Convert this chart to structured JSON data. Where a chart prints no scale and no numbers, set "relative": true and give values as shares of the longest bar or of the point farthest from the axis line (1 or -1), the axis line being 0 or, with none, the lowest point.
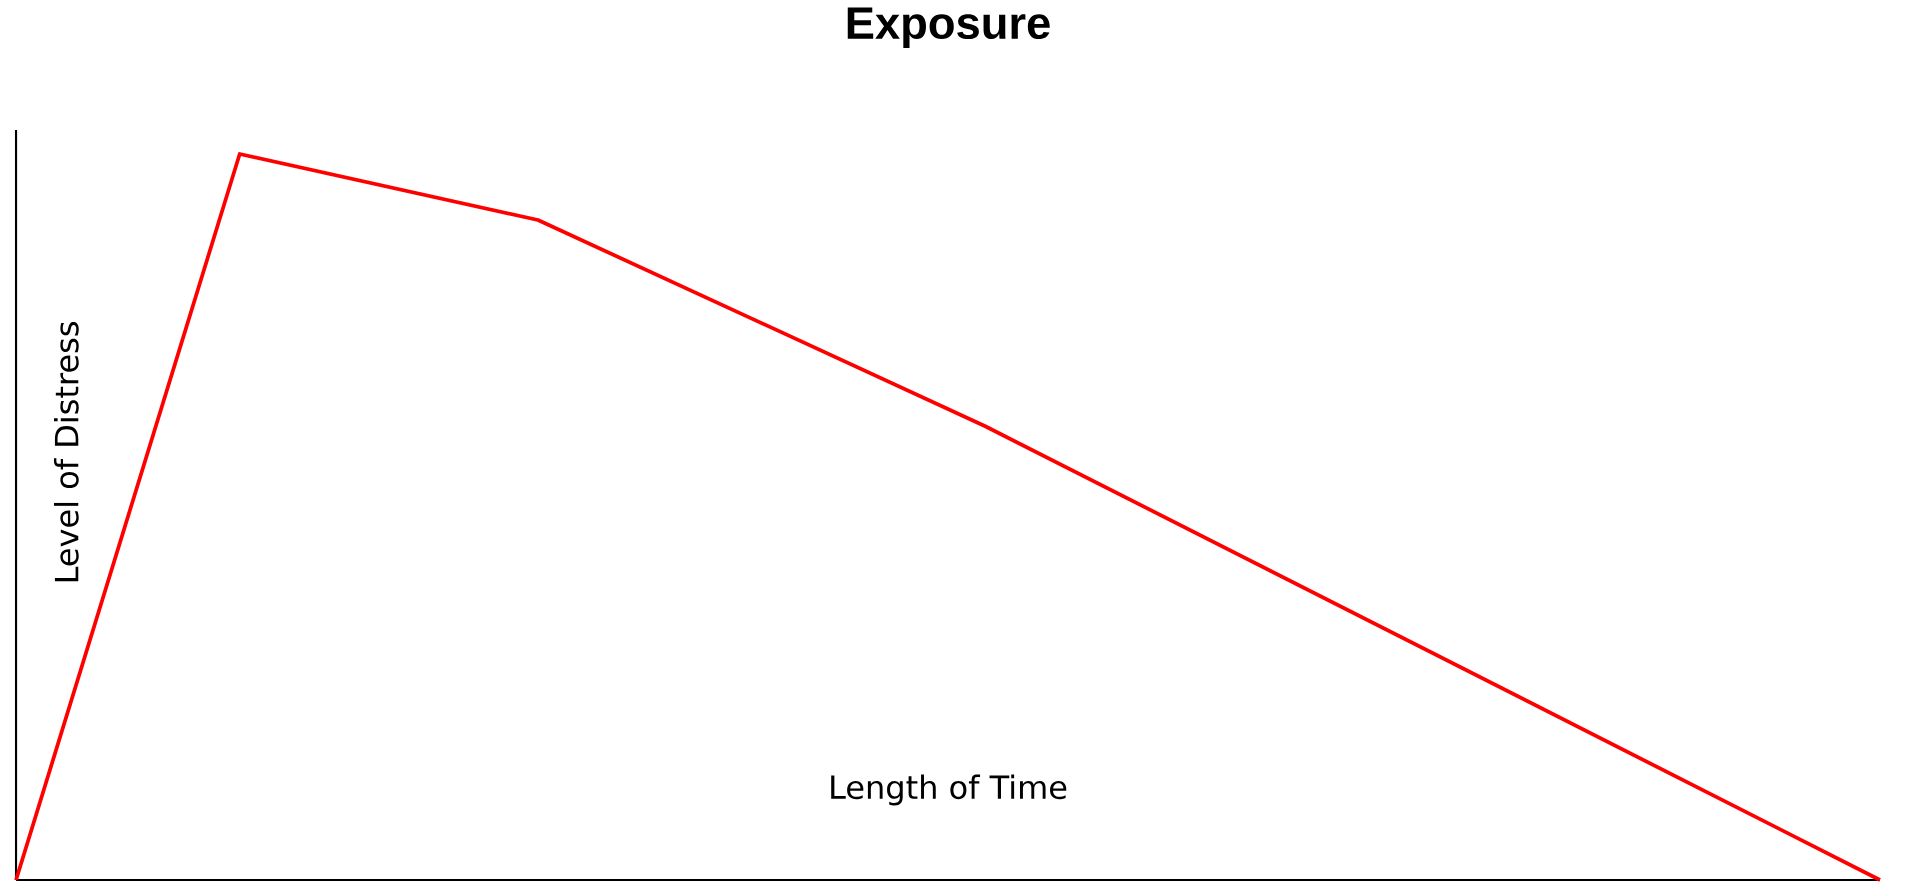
{
  "chart_data": {
    "type": "line",
    "title": "Exposure",
    "xlabel": "Length of Time",
    "ylabel": "Level of Distress",
    "relative": true,
    "tick_labels": false,
    "categories": [
      null,
      null,
      null,
      null,
      null,
      null,
      null,
      null,
      null,
      null,
      null,
      null,
      null,
      null,
      null,
      null,
      null,
      null,
      null,
      null,
      null,
      null,
      null,
      null,
      null,
      null
    ],
    "series": [
      {
        "color": "#ff0000",
        "values": [
          0,
          null,
          null,
          1,
          null,
          null,
          null,
          0.909,
          null,
          null,
          null,
          null,
          null,
          0.625,
          null,
          null,
          null,
          null,
          null,
          null,
          null,
          null,
          null,
          null,
          null,
          0
        ]
      }
    ]
  }
}
